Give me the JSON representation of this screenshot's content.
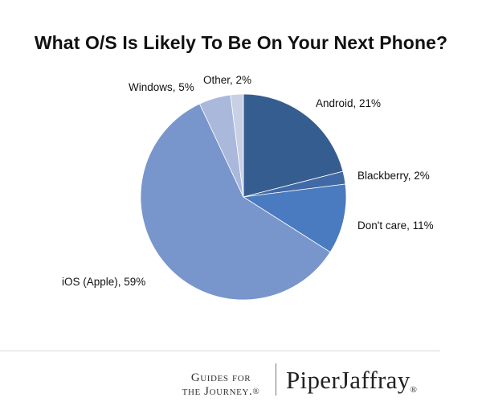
{
  "title": "What O/S Is Likely To Be On Your Next Phone?",
  "chart_data": {
    "type": "pie",
    "title": "What O/S Is Likely To Be On Your Next Phone?",
    "unit": "%",
    "slices": [
      {
        "name": "Android",
        "value": 21,
        "label": "Android, 21%",
        "color": "#365d8f"
      },
      {
        "name": "Blackberry",
        "value": 2,
        "label": "Blackberry, 2%",
        "color": "#4169a5"
      },
      {
        "name": "Don't care",
        "value": 11,
        "label": "Don't care, 11%",
        "color": "#4a7abf"
      },
      {
        "name": "iOS (Apple)",
        "value": 59,
        "label": "iOS (Apple), 59%",
        "color": "#7896cc"
      },
      {
        "name": "Windows",
        "value": 5,
        "label": "Windows, 5%",
        "color": "#a9b8db"
      },
      {
        "name": "Other",
        "value": 2,
        "label": "Other, 2%",
        "color": "#c8d0e6"
      }
    ]
  },
  "footer": {
    "tagline_line1": "Guides for",
    "tagline_line2": "the Journey.",
    "tagline_mark": "®",
    "brand": "PiperJaffray",
    "brand_mark": "®"
  }
}
